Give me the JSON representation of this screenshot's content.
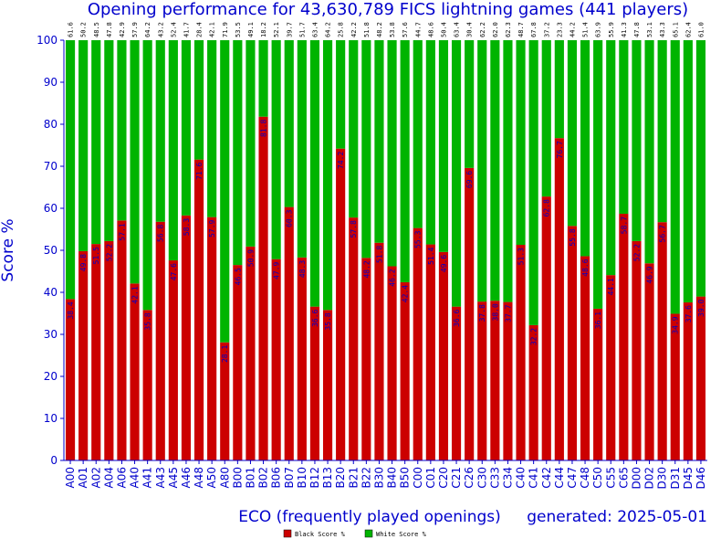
{
  "chart_data": {
    "type": "bar",
    "stacked": true,
    "title": "Opening performance for 43,630,789 FICS lightning games (441 players)",
    "xlabel": "ECO (frequently played openings)",
    "ylabel": "Score %",
    "generated": "generated: 2025-05-01",
    "ylim": [
      0,
      100
    ],
    "yticks": [
      0,
      10,
      20,
      30,
      40,
      50,
      60,
      70,
      80,
      90,
      100
    ],
    "grid": false,
    "legend_position": "bottom-center",
    "categories": [
      "A00",
      "A01",
      "A02",
      "A04",
      "A06",
      "A40",
      "A41",
      "A43",
      "A45",
      "A46",
      "A48",
      "A50",
      "A80",
      "B00",
      "B01",
      "B02",
      "B06",
      "B07",
      "B10",
      "B12",
      "B13",
      "B20",
      "B21",
      "B22",
      "B30",
      "B40",
      "B50",
      "C00",
      "C01",
      "C20",
      "C21",
      "C26",
      "C30",
      "C33",
      "C34",
      "C40",
      "C41",
      "C42",
      "C44",
      "C47",
      "C48",
      "C50",
      "C55",
      "C65",
      "D00",
      "D02",
      "D30",
      "D31",
      "D45",
      "D46"
    ],
    "series": [
      {
        "name": "Black Score %",
        "color": "#cc0000",
        "values": [
          38.4,
          49.8,
          51.5,
          52.2,
          57.1,
          42.1,
          35.8,
          56.8,
          47.6,
          58.3,
          71.6,
          57.9,
          28.1,
          46.5,
          50.9,
          81.8,
          47.9,
          60.3,
          48.3,
          36.6,
          35.8,
          74.2,
          57.8,
          48.2,
          51.8,
          46.2,
          42.4,
          55.3,
          51.4,
          49.6,
          36.6,
          69.6,
          37.8,
          38.0,
          37.7,
          51.3,
          32.2,
          62.8,
          76.7,
          55.8,
          48.6,
          36.1,
          44.1,
          58.7,
          52.2,
          46.9,
          56.7,
          34.9,
          37.6,
          39.0
        ]
      },
      {
        "name": "White Score %",
        "color": "#00b400",
        "values": [
          61.6,
          50.2,
          48.5,
          47.8,
          42.9,
          57.9,
          64.2,
          43.2,
          52.4,
          41.7,
          28.4,
          42.1,
          71.9,
          53.5,
          49.1,
          18.2,
          52.1,
          39.7,
          51.7,
          63.4,
          64.2,
          25.8,
          42.2,
          51.8,
          48.2,
          53.8,
          57.6,
          44.7,
          48.6,
          50.4,
          63.4,
          30.4,
          62.2,
          62.0,
          62.3,
          48.7,
          67.8,
          37.2,
          23.3,
          44.2,
          51.4,
          63.9,
          55.9,
          41.3,
          47.8,
          53.1,
          43.3,
          65.1,
          62.4,
          61.0
        ]
      }
    ]
  }
}
